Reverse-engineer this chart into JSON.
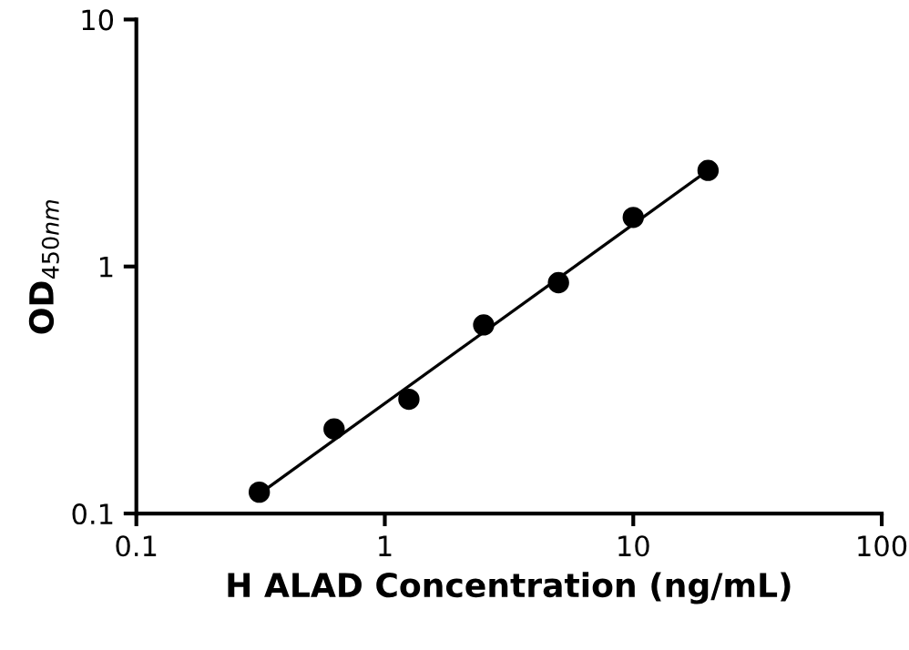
{
  "chart_data": {
    "type": "scatter",
    "xlabel": "H ALAD Concentration (ng/mL)",
    "ylabel": "OD$_{450nm}$",
    "log": "xy",
    "grid": false,
    "legend": false,
    "xlim": [
      0.1,
      100
    ],
    "ylim": [
      0.1,
      10
    ],
    "xticks": [
      0.1,
      1,
      10,
      100
    ],
    "yticks": [
      0.1,
      1,
      10
    ],
    "series": [
      {
        "color": "#000000",
        "marker": "circle",
        "x": [
          0.3125,
          0.625,
          1.25,
          2.5,
          5,
          10,
          20
        ],
        "values": [
          0.122,
          0.22,
          0.29,
          0.58,
          0.86,
          1.58,
          2.45
        ]
      },
      {
        "type": "line",
        "color": "#000000",
        "marker": "none",
        "x": [
          0.3125,
          20
        ],
        "values": [
          0.12,
          2.45
        ]
      }
    ]
  }
}
